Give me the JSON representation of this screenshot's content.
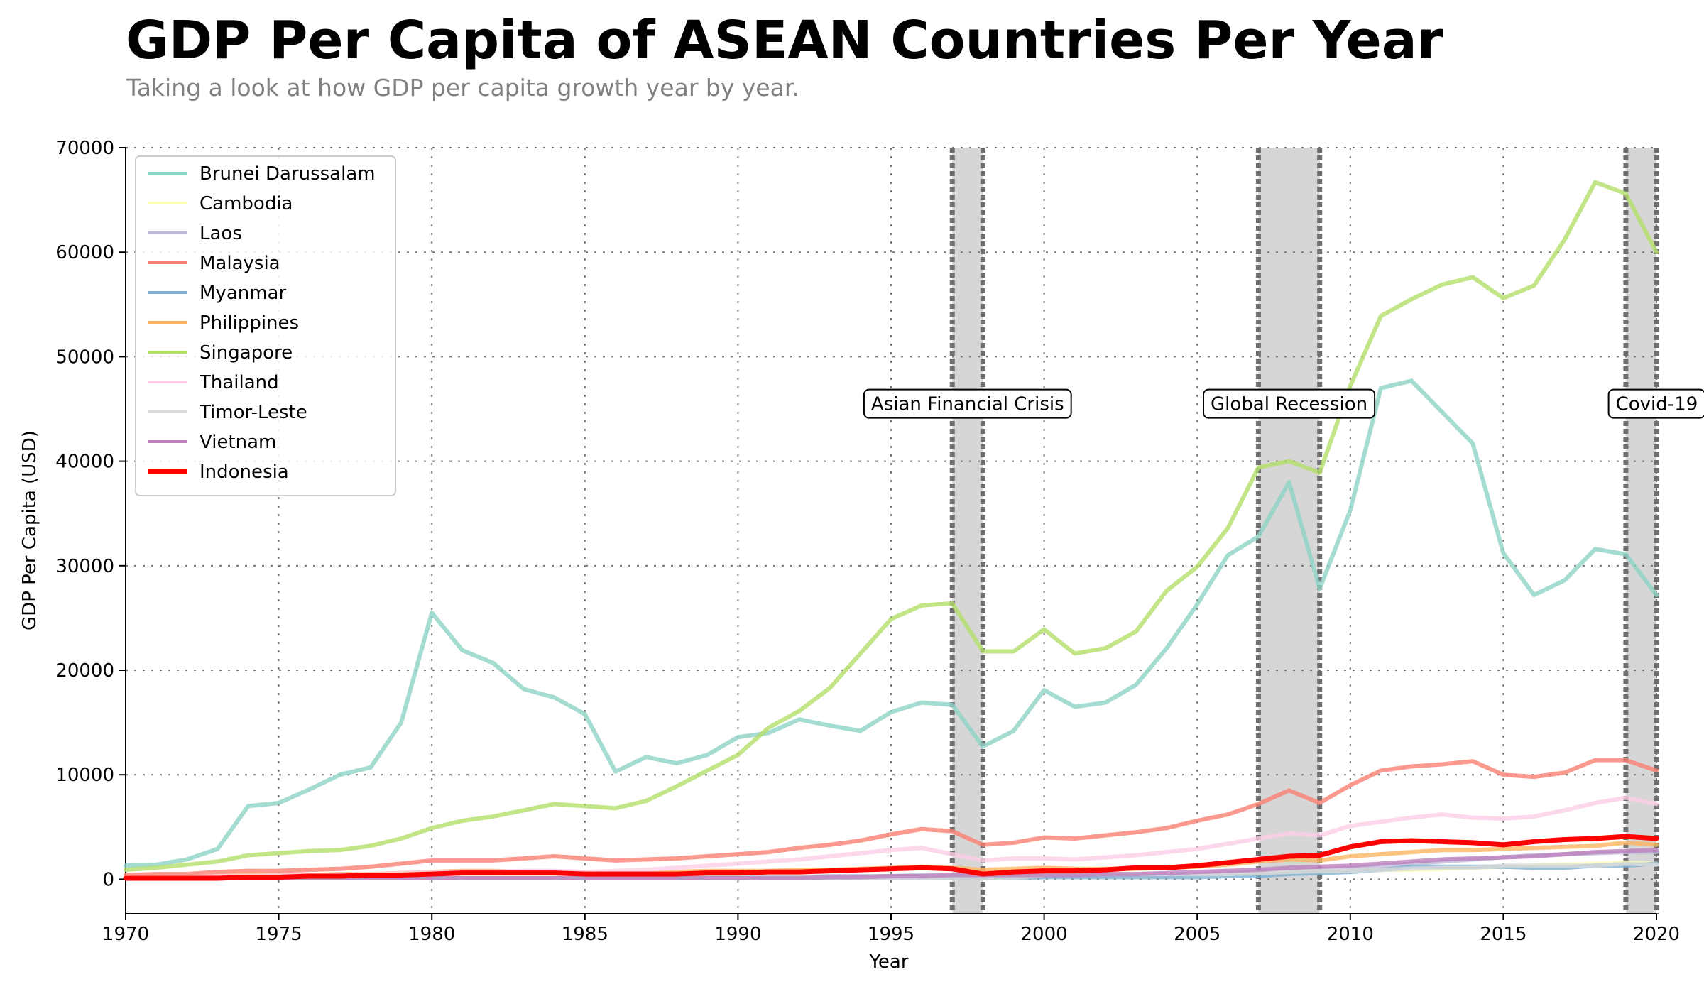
{
  "chart_data": {
    "type": "line",
    "title": "GDP Per Capita of ASEAN Countries Per Year",
    "subtitle": "Taking a look at how GDP per capita growth year by year.",
    "xlabel": "Year",
    "ylabel": "GDP Per Capita (USD)",
    "xlim": [
      1970,
      2020
    ],
    "ylim": [
      -3300,
      70000
    ],
    "xticks": [
      1970,
      1975,
      1980,
      1985,
      1990,
      1995,
      2000,
      2005,
      2010,
      2015,
      2020
    ],
    "yticks": [
      0,
      10000,
      20000,
      30000,
      40000,
      50000,
      60000,
      70000
    ],
    "grid": true,
    "legend_position": "upper-left",
    "events": [
      {
        "label": "Asian Financial Crisis",
        "start": 1997,
        "end": 1998
      },
      {
        "label": "Global Recession",
        "start": 2007,
        "end": 2009
      },
      {
        "label": "Covid-19",
        "start": 2019,
        "end": 2020
      }
    ],
    "x": [
      1970,
      1971,
      1972,
      1973,
      1974,
      1975,
      1976,
      1977,
      1978,
      1979,
      1980,
      1981,
      1982,
      1983,
      1984,
      1985,
      1986,
      1987,
      1988,
      1989,
      1990,
      1991,
      1992,
      1993,
      1994,
      1995,
      1996,
      1997,
      1998,
      1999,
      2000,
      2001,
      2002,
      2003,
      2004,
      2005,
      2006,
      2007,
      2008,
      2009,
      2010,
      2011,
      2012,
      2013,
      2014,
      2015,
      2016,
      2017,
      2018,
      2019,
      2020
    ],
    "series": [
      {
        "name": "Brunei Darussalam",
        "color": "#8dd3c7",
        "values": [
          1300,
          1400,
          1900,
          2900,
          7000,
          7300,
          8600,
          10000,
          10700,
          15000,
          25500,
          21900,
          20700,
          18200,
          17400,
          15800,
          10300,
          11700,
          11100,
          11900,
          13600,
          14000,
          15300,
          14700,
          14200,
          16000,
          16900,
          16700,
          12700,
          14200,
          18100,
          16500,
          16900,
          18600,
          22100,
          26300,
          31000,
          32800,
          38000,
          27800,
          35300,
          47000,
          47700,
          44700,
          41700,
          31200,
          27200,
          28600,
          31600,
          31100,
          27200
        ]
      },
      {
        "name": "Cambodia",
        "color": "#ffffb3",
        "values": [
          100,
          100,
          100,
          100,
          100,
          100,
          100,
          100,
          100,
          100,
          100,
          100,
          100,
          100,
          100,
          100,
          100,
          100,
          100,
          100,
          100,
          100,
          200,
          200,
          200,
          300,
          300,
          300,
          300,
          300,
          300,
          300,
          300,
          300,
          400,
          500,
          500,
          600,
          700,
          700,
          800,
          900,
          900,
          1000,
          1100,
          1200,
          1300,
          1400,
          1500,
          1600,
          1500
        ]
      },
      {
        "name": "Laos",
        "color": "#bebada",
        "values": [
          100,
          100,
          100,
          100,
          100,
          100,
          100,
          100,
          100,
          100,
          100,
          100,
          100,
          100,
          100,
          100,
          100,
          100,
          200,
          200,
          200,
          200,
          200,
          300,
          300,
          300,
          400,
          300,
          300,
          300,
          300,
          300,
          300,
          400,
          400,
          500,
          600,
          700,
          900,
          900,
          1100,
          1300,
          1500,
          1700,
          1900,
          2100,
          2300,
          2400,
          2500,
          2600,
          2600
        ]
      },
      {
        "name": "Malaysia",
        "color": "#fb8072",
        "values": [
          400,
          500,
          500,
          700,
          800,
          800,
          900,
          1000,
          1200,
          1500,
          1800,
          1800,
          1800,
          2000,
          2200,
          2000,
          1800,
          1900,
          2000,
          2200,
          2400,
          2600,
          3000,
          3300,
          3700,
          4300,
          4800,
          4600,
          3300,
          3500,
          4000,
          3900,
          4200,
          4500,
          4900,
          5600,
          6200,
          7200,
          8500,
          7300,
          9000,
          10400,
          10800,
          11000,
          11300,
          10000,
          9800,
          10200,
          11400,
          11400,
          10400
        ]
      },
      {
        "name": "Myanmar",
        "color": "#80b1d3",
        "values": [
          100,
          100,
          100,
          100,
          100,
          100,
          100,
          100,
          100,
          100,
          100,
          100,
          100,
          100,
          100,
          100,
          100,
          100,
          100,
          100,
          100,
          100,
          100,
          100,
          100,
          100,
          100,
          100,
          100,
          100,
          200,
          200,
          200,
          200,
          200,
          200,
          300,
          300,
          500,
          600,
          700,
          900,
          1200,
          1200,
          1200,
          1200,
          1100,
          1100,
          1300,
          1300,
          1500
        ]
      },
      {
        "name": "Philippines",
        "color": "#fdb462",
        "values": [
          200,
          200,
          200,
          300,
          400,
          400,
          400,
          500,
          500,
          600,
          700,
          800,
          800,
          700,
          600,
          600,
          600,
          600,
          700,
          800,
          800,
          800,
          900,
          900,
          1000,
          1100,
          1200,
          1100,
          900,
          1000,
          1100,
          1000,
          1000,
          1000,
          1100,
          1200,
          1400,
          1700,
          1900,
          1800,
          2200,
          2400,
          2600,
          2800,
          2800,
          2900,
          3000,
          3100,
          3200,
          3500,
          3300
        ]
      },
      {
        "name": "Singapore",
        "color": "#b3de69",
        "values": [
          900,
          1100,
          1400,
          1700,
          2300,
          2500,
          2700,
          2800,
          3200,
          3900,
          4900,
          5600,
          6000,
          6600,
          7200,
          7000,
          6800,
          7500,
          8900,
          10400,
          11900,
          14500,
          16100,
          18300,
          21600,
          24900,
          26200,
          26400,
          21800,
          21800,
          23900,
          21600,
          22100,
          23700,
          27600,
          29900,
          33600,
          39400,
          40000,
          38900,
          47200,
          53900,
          55500,
          56900,
          57600,
          55600,
          56800,
          61200,
          66700,
          65600,
          60000
        ]
      },
      {
        "name": "Thailand",
        "color": "#fccde5",
        "values": [
          200,
          200,
          200,
          300,
          300,
          400,
          400,
          400,
          500,
          600,
          700,
          700,
          700,
          800,
          800,
          700,
          800,
          900,
          1100,
          1300,
          1500,
          1700,
          1900,
          2200,
          2500,
          2800,
          3000,
          2400,
          1800,
          2000,
          2000,
          1900,
          2100,
          2300,
          2600,
          2900,
          3400,
          3900,
          4400,
          4200,
          5100,
          5500,
          5900,
          6200,
          5900,
          5800,
          6000,
          6600,
          7300,
          7800,
          7200
        ]
      },
      {
        "name": "Timor-Leste",
        "color": "#d9d9d9",
        "values": [
          100,
          100,
          100,
          100,
          100,
          100,
          100,
          100,
          100,
          100,
          100,
          100,
          100,
          100,
          100,
          100,
          100,
          100,
          100,
          100,
          100,
          100,
          100,
          100,
          100,
          100,
          100,
          100,
          100,
          100,
          400,
          500,
          500,
          500,
          500,
          500,
          500,
          600,
          700,
          800,
          800,
          900,
          1000,
          1100,
          1100,
          1300,
          1300,
          1300,
          1300,
          1500,
          1400
        ]
      },
      {
        "name": "Vietnam",
        "color": "#bc80bd",
        "values": [
          100,
          100,
          100,
          100,
          100,
          100,
          100,
          100,
          100,
          100,
          100,
          100,
          100,
          100,
          100,
          100,
          100,
          100,
          100,
          100,
          100,
          100,
          100,
          200,
          200,
          300,
          300,
          400,
          400,
          400,
          400,
          400,
          500,
          500,
          600,
          700,
          800,
          900,
          1100,
          1200,
          1300,
          1500,
          1700,
          1900,
          2000,
          2100,
          2200,
          2400,
          2600,
          2700,
          2800
        ]
      },
      {
        "name": "Indonesia",
        "color": "#ff0000",
        "values": [
          100,
          100,
          100,
          100,
          200,
          200,
          300,
          300,
          400,
          400,
          500,
          600,
          600,
          600,
          600,
          500,
          500,
          500,
          500,
          600,
          600,
          700,
          700,
          800,
          900,
          1000,
          1100,
          1000,
          500,
          700,
          800,
          800,
          900,
          1100,
          1100,
          1300,
          1600,
          1900,
          2200,
          2300,
          3100,
          3600,
          3700,
          3600,
          3500,
          3300,
          3600,
          3800,
          3900,
          4100,
          3900
        ]
      }
    ]
  }
}
